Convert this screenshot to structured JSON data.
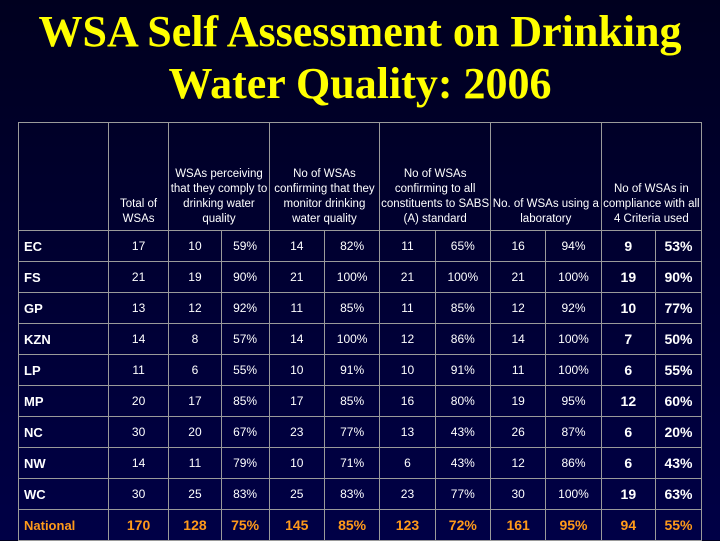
{
  "title_line1": "WSA Self Assessment on Drinking",
  "title_line2": "Water Quality: 2006",
  "colors": {
    "title": "#ffff00",
    "national": "#ff9a1a"
  },
  "headers": {
    "region": "",
    "total": "Total of WSAs",
    "perceiving": "WSAs perceiving that they comply to drinking water quality",
    "monitoring": "No of WSAs confirming that they monitor drinking water quality",
    "sabs": "No of WSAs confirming to all constituents to SABS (A) standard",
    "laboratory": "No. of WSAs using a laboratory",
    "compliance": "No of WSAs in compliance with all 4 Criteria used"
  },
  "rows": [
    [
      "EC",
      "17",
      "10",
      "59%",
      "14",
      "82%",
      "11",
      "65%",
      "16",
      "94%",
      "9",
      "53%"
    ],
    [
      "FS",
      "21",
      "19",
      "90%",
      "21",
      "100%",
      "21",
      "100%",
      "21",
      "100%",
      "19",
      "90%"
    ],
    [
      "GP",
      "13",
      "12",
      "92%",
      "11",
      "85%",
      "11",
      "85%",
      "12",
      "92%",
      "10",
      "77%"
    ],
    [
      "KZN",
      "14",
      "8",
      "57%",
      "14",
      "100%",
      "12",
      "86%",
      "14",
      "100%",
      "7",
      "50%"
    ],
    [
      "LP",
      "11",
      "6",
      "55%",
      "10",
      "91%",
      "10",
      "91%",
      "11",
      "100%",
      "6",
      "55%"
    ],
    [
      "MP",
      "20",
      "17",
      "85%",
      "17",
      "85%",
      "16",
      "80%",
      "19",
      "95%",
      "12",
      "60%"
    ],
    [
      "NC",
      "30",
      "20",
      "67%",
      "23",
      "77%",
      "13",
      "43%",
      "26",
      "87%",
      "6",
      "20%"
    ],
    [
      "NW",
      "14",
      "11",
      "79%",
      "10",
      "71%",
      "6",
      "43%",
      "12",
      "86%",
      "6",
      "43%"
    ],
    [
      "WC",
      "30",
      "25",
      "83%",
      "25",
      "83%",
      "23",
      "77%",
      "30",
      "100%",
      "19",
      "63%"
    ],
    [
      "National",
      "170",
      "128",
      "75%",
      "145",
      "85%",
      "123",
      "72%",
      "161",
      "95%",
      "94",
      "55%"
    ]
  ]
}
